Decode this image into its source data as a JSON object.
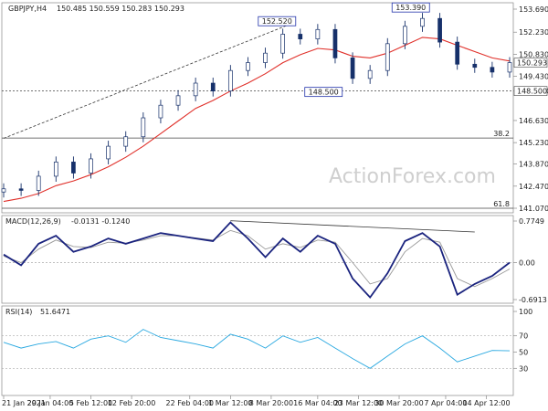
{
  "chart_data": [
    {
      "type": "candlestick",
      "title": "GBPJPY,H4",
      "ohlc_readout": "150.485 150.559 150.283 150.293",
      "ylim": [
        141.07,
        153.69
      ],
      "price_ticks": [
        "153.690",
        "152.230",
        "150.830",
        "149.430",
        "148.500",
        "146.630",
        "145.230",
        "143.870",
        "142.470",
        "141.070"
      ],
      "current_price": "150.293",
      "current_price_value": 150.293,
      "horizontal_level": {
        "label": "148.500",
        "value": 148.5
      },
      "annotations": [
        {
          "text": "152.520",
          "x": "2021-03-09",
          "y": 152.52
        },
        {
          "text": "153.390",
          "x": "2021-04-01",
          "y": 153.39
        },
        {
          "text": "148.500",
          "x": "2021-03-17",
          "y": 148.5
        }
      ],
      "fib_levels": [
        {
          "label": "38.2",
          "value": 145.52
        },
        {
          "label": "61.8",
          "value": 141.07
        }
      ],
      "trendline": {
        "start": [
          "2021-01-21",
          145.5
        ],
        "end": [
          "2021-03-11",
          152.7
        ]
      },
      "x_dates": [
        "2021-01-21",
        "2021-01-24",
        "2021-01-27",
        "2021-01-30",
        "2021-02-02",
        "2021-02-05",
        "2021-02-08",
        "2021-02-11",
        "2021-02-14",
        "2021-02-17",
        "2021-02-20",
        "2021-02-23",
        "2021-02-26",
        "2021-03-01",
        "2021-03-04",
        "2021-03-07",
        "2021-03-10",
        "2021-03-13",
        "2021-03-16",
        "2021-03-19",
        "2021-03-22",
        "2021-03-25",
        "2021-03-28",
        "2021-03-31",
        "2021-04-03",
        "2021-04-06",
        "2021-04-09",
        "2021-04-12",
        "2021-04-15",
        "2021-04-18"
      ],
      "close": [
        142.3,
        142.2,
        143.1,
        144.0,
        143.3,
        144.2,
        145.0,
        145.6,
        146.8,
        147.6,
        148.2,
        149.0,
        148.5,
        149.8,
        150.3,
        150.9,
        152.1,
        151.8,
        152.4,
        150.6,
        149.3,
        149.8,
        151.5,
        152.6,
        153.1,
        151.6,
        150.2,
        150.0,
        149.7,
        150.3
      ],
      "ma_close": [
        141.5,
        141.7,
        142.0,
        142.5,
        142.8,
        143.2,
        143.7,
        144.3,
        145.0,
        145.8,
        146.6,
        147.4,
        147.9,
        148.5,
        149.0,
        149.6,
        150.3,
        150.8,
        151.2,
        151.1,
        150.7,
        150.6,
        150.9,
        151.4,
        151.9,
        151.8,
        151.4,
        151.0,
        150.6,
        150.4
      ],
      "x_tick_labels": [
        "21 Jan 2021",
        "29 Jan 04:00",
        "5 Feb 12:00",
        "12 Feb 20:00",
        "22 Feb 04:00",
        "1 Mar 12:00",
        "8 Mar 20:00",
        "16 Mar 04:00",
        "23 Mar 12:00",
        "30 Mar 20:00",
        "7 Apr 04:00",
        "14 Apr 12:00"
      ],
      "x_tick_dates": [
        "2021-01-21",
        "2021-01-29",
        "2021-02-05",
        "2021-02-12",
        "2021-02-22",
        "2021-03-01",
        "2021-03-08",
        "2021-03-16",
        "2021-03-23",
        "2021-03-30",
        "2021-04-07",
        "2021-04-14"
      ],
      "watermark": "ActionForex.com"
    },
    {
      "type": "line",
      "title": "MACD(12,26,9)",
      "readout": "-0.0131 -0.1240",
      "ylim": [
        -0.6913,
        0.7749
      ],
      "ticks": [
        "0.7749",
        "0.00",
        "-0.6913"
      ],
      "x_dates": [
        "2021-01-21",
        "2021-01-24",
        "2021-01-27",
        "2021-01-30",
        "2021-02-02",
        "2021-02-05",
        "2021-02-08",
        "2021-02-11",
        "2021-02-14",
        "2021-02-17",
        "2021-02-20",
        "2021-02-23",
        "2021-02-26",
        "2021-03-01",
        "2021-03-04",
        "2021-03-07",
        "2021-03-10",
        "2021-03-13",
        "2021-03-16",
        "2021-03-19",
        "2021-03-22",
        "2021-03-25",
        "2021-03-28",
        "2021-03-31",
        "2021-04-03",
        "2021-04-06",
        "2021-04-09",
        "2021-04-12",
        "2021-04-15",
        "2021-04-18"
      ],
      "series": [
        {
          "values": [
            0.15,
            -0.05,
            0.35,
            0.5,
            0.2,
            0.3,
            0.45,
            0.35,
            0.45,
            0.55,
            0.5,
            0.45,
            0.4,
            0.75,
            0.45,
            0.1,
            0.45,
            0.2,
            0.5,
            0.35,
            -0.3,
            -0.65,
            -0.2,
            0.4,
            0.55,
            0.3,
            -0.6,
            -0.4,
            -0.25,
            0.0
          ]
        },
        {
          "values": [
            0.12,
            0.0,
            0.25,
            0.42,
            0.3,
            0.28,
            0.38,
            0.36,
            0.42,
            0.5,
            0.5,
            0.46,
            0.42,
            0.6,
            0.5,
            0.25,
            0.35,
            0.28,
            0.42,
            0.38,
            0.0,
            -0.4,
            -0.3,
            0.2,
            0.45,
            0.38,
            -0.3,
            -0.45,
            -0.3,
            -0.12
          ]
        }
      ],
      "trendline": {
        "start": [
          "2021-03-01",
          0.78
        ],
        "end": [
          "2021-04-12",
          0.57
        ]
      }
    },
    {
      "type": "line",
      "title": "RSI(14)",
      "readout": "51.6471",
      "ylim": [
        0,
        100
      ],
      "ticks": [
        "100",
        "70",
        "50",
        "30",
        "0"
      ],
      "guide_levels": [
        70,
        30
      ],
      "x_dates": [
        "2021-01-21",
        "2021-01-24",
        "2021-01-27",
        "2021-01-30",
        "2021-02-02",
        "2021-02-05",
        "2021-02-08",
        "2021-02-11",
        "2021-02-14",
        "2021-02-17",
        "2021-02-20",
        "2021-02-23",
        "2021-02-26",
        "2021-03-01",
        "2021-03-04",
        "2021-03-07",
        "2021-03-10",
        "2021-03-13",
        "2021-03-16",
        "2021-03-19",
        "2021-03-22",
        "2021-03-25",
        "2021-03-28",
        "2021-03-31",
        "2021-04-03",
        "2021-04-06",
        "2021-04-09",
        "2021-04-12",
        "2021-04-15",
        "2021-04-18"
      ],
      "values": [
        62,
        55,
        60,
        63,
        55,
        66,
        70,
        62,
        78,
        68,
        64,
        60,
        55,
        72,
        66,
        55,
        70,
        62,
        68,
        55,
        42,
        30,
        45,
        60,
        70,
        55,
        38,
        45,
        52,
        51.6
      ]
    }
  ]
}
